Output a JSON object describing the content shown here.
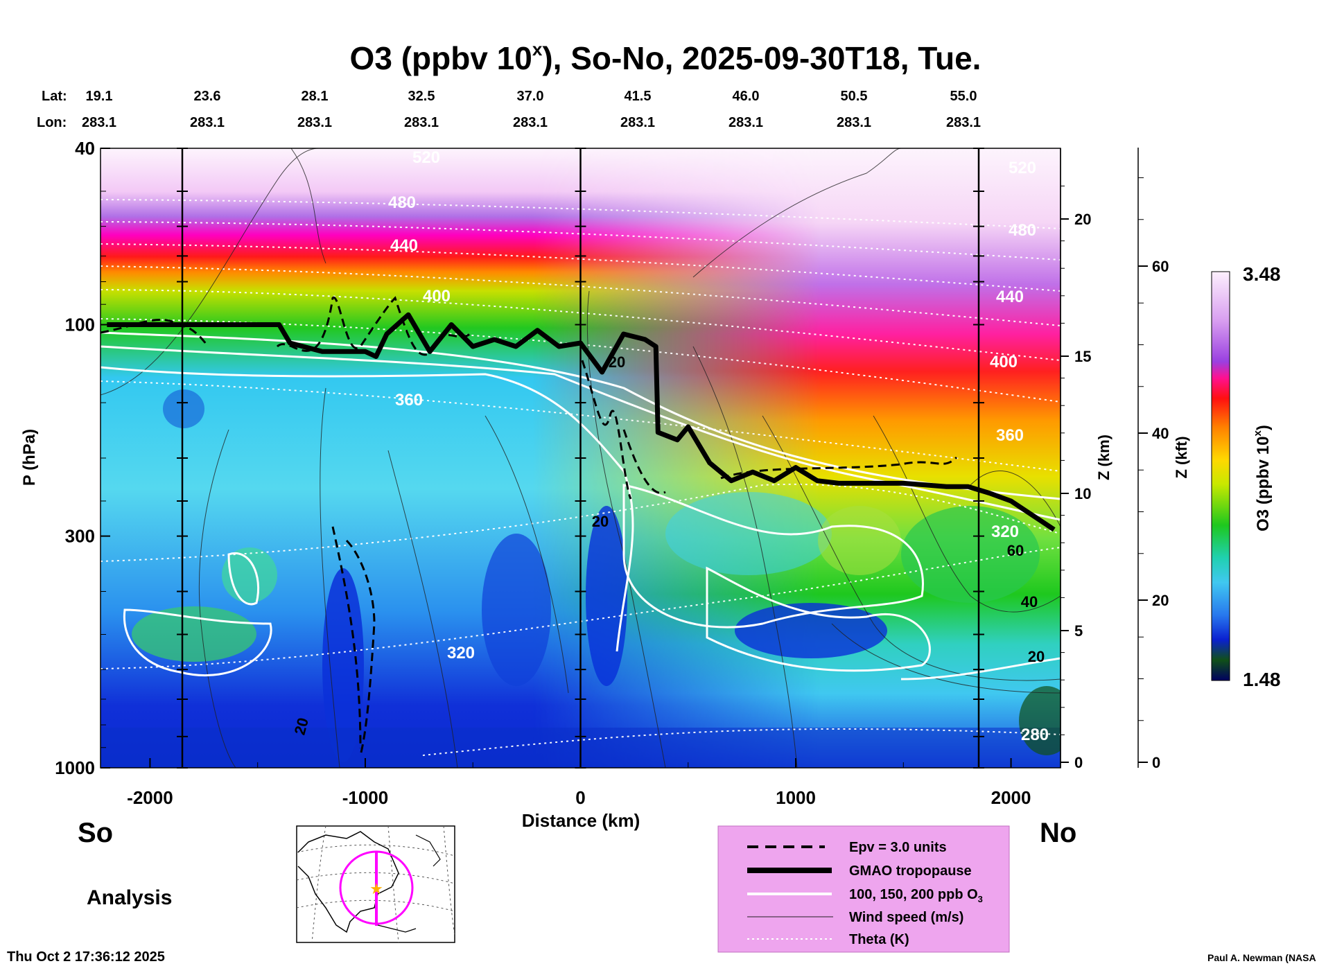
{
  "title": "O3 (ppbv 10",
  "title_sup": "x",
  "title_rest": "), So-No, 2025-09-30T18, Tue.",
  "lat_label": "Lat:",
  "lon_label": "Lon:",
  "lat_values": [
    "19.1",
    "23.6",
    "28.1",
    "32.5",
    "37.0",
    "41.5",
    "46.0",
    "50.5",
    "55.0"
  ],
  "lon_values": [
    "283.1",
    "283.1",
    "283.1",
    "283.1",
    "283.1",
    "283.1",
    "283.1",
    "283.1",
    "283.1"
  ],
  "left_axis_label": "P (hPa)",
  "pressure_ticks": [
    "40",
    "100",
    "300",
    "1000"
  ],
  "bottom_axis_label": "Distance (km)",
  "distance_ticks": [
    "-2000",
    "-1000",
    "0",
    "1000",
    "2000"
  ],
  "z_km_label": "Z (km)",
  "z_km_ticks": [
    "20",
    "15",
    "10",
    "5",
    "0"
  ],
  "z_kft_label": "Z (kft)",
  "z_kft_ticks": [
    "60",
    "40",
    "20",
    "0"
  ],
  "colorbar_label": "O3 (ppbv 10",
  "colorbar_sup": "x",
  "colorbar_close": ")",
  "colorbar_max": "3.48",
  "colorbar_min": "1.48",
  "so_label": "So",
  "no_label": "No",
  "analysis_label": "Analysis",
  "timestamp": "Thu Oct  2 17:36:12 2025",
  "credit": "Paul A. Newman (NASA",
  "theta_labels": [
    "520",
    "480",
    "440",
    "400",
    "360",
    "320",
    "280",
    "520",
    "480",
    "440",
    "400",
    "360",
    "320"
  ],
  "wind_labels": [
    "20",
    "20",
    "60",
    "40",
    "20",
    "20"
  ],
  "legend": {
    "items": [
      {
        "label": "Epv = 3.0 units"
      },
      {
        "label": "GMAO tropopause"
      },
      {
        "label": "100, 150, 200 ppb O"
      },
      {
        "label": "Wind speed (m/s)"
      },
      {
        "label": "Theta (K)"
      }
    ],
    "o3_sub": "3"
  },
  "colors": {
    "legend_bg": "#eea5ee",
    "map_track": "#ff00ff",
    "map_star": "#ffb000"
  },
  "chart_data": {
    "type": "heatmap",
    "title": "O3 (ppbv 10^x), So-No, 2025-09-30T18, Tue.",
    "xlabel": "Distance (km)",
    "ylabel": "P (hPa)",
    "xlim": [
      -2230,
      2230
    ],
    "ylim": [
      1000,
      40
    ],
    "y_scale": "log",
    "colorbar": {
      "label": "O3 (ppbv 10^x)",
      "min": 1.48,
      "max": 3.48
    },
    "tropopause_hpa": [
      [
        -2200,
        100
      ],
      [
        -1600,
        100
      ],
      [
        -1400,
        100
      ],
      [
        -1350,
        110
      ],
      [
        -1200,
        115
      ],
      [
        -1000,
        115
      ],
      [
        -950,
        118
      ],
      [
        -900,
        105
      ],
      [
        -800,
        95
      ],
      [
        -700,
        115
      ],
      [
        -600,
        100
      ],
      [
        -500,
        112
      ],
      [
        -400,
        108
      ],
      [
        -300,
        112
      ],
      [
        -200,
        103
      ],
      [
        -100,
        112
      ],
      [
        0,
        110
      ],
      [
        100,
        128
      ],
      [
        200,
        105
      ],
      [
        300,
        108
      ],
      [
        350,
        112
      ],
      [
        360,
        175
      ],
      [
        450,
        182
      ],
      [
        500,
        170
      ],
      [
        600,
        205
      ],
      [
        700,
        225
      ],
      [
        800,
        215
      ],
      [
        900,
        225
      ],
      [
        1000,
        210
      ],
      [
        1100,
        225
      ],
      [
        1200,
        228
      ],
      [
        1400,
        228
      ],
      [
        1500,
        228
      ],
      [
        1600,
        230
      ],
      [
        1700,
        232
      ],
      [
        1800,
        232
      ],
      [
        1900,
        240
      ],
      [
        2000,
        250
      ],
      [
        2200,
        290
      ]
    ],
    "theta_K": [
      280,
      320,
      360,
      400,
      440,
      480,
      520
    ],
    "wind_speed_ms": [
      20,
      40,
      60
    ],
    "o3_ppb_contours": [
      100,
      150,
      200
    ],
    "epv_units": 3.0
  }
}
